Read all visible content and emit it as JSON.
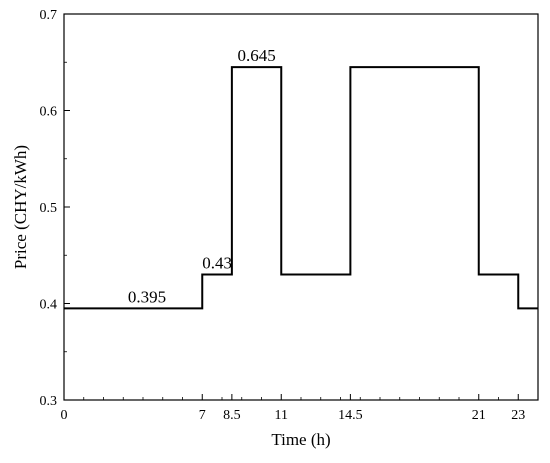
{
  "chart_data": {
    "type": "line",
    "step": true,
    "title": "",
    "xlabel": "Time (h)",
    "ylabel": "Price (CHY/kWh)",
    "xlim": [
      0,
      24
    ],
    "ylim": [
      0.3,
      0.7
    ],
    "x_ticks": [
      0,
      7,
      8.5,
      11,
      14.5,
      21,
      23
    ],
    "x_tick_labels": [
      "0",
      "7",
      "8.5",
      "11",
      "14.5",
      "21",
      "23"
    ],
    "y_ticks": [
      0.3,
      0.4,
      0.5,
      0.6,
      0.7
    ],
    "y_tick_labels": [
      "0.3",
      "0.4",
      "0.5",
      "0.6",
      "0.7"
    ],
    "grid": false,
    "legend": "none",
    "series": [
      {
        "segments": [
          {
            "x_start": 0,
            "x_end": 7,
            "value": 0.395
          },
          {
            "x_start": 7,
            "x_end": 8.5,
            "value": 0.43
          },
          {
            "x_start": 8.5,
            "x_end": 11,
            "value": 0.645
          },
          {
            "x_start": 11,
            "x_end": 14.5,
            "value": 0.43
          },
          {
            "x_start": 14.5,
            "x_end": 21,
            "value": 0.645
          },
          {
            "x_start": 21,
            "x_end": 23,
            "value": 0.43
          },
          {
            "x_start": 23,
            "x_end": 24,
            "value": 0.395
          }
        ]
      }
    ],
    "annotations": [
      {
        "text": "0.395",
        "x": 4.2,
        "y": 0.395
      },
      {
        "text": "0.43",
        "x": 7.75,
        "y": 0.43
      },
      {
        "text": "0.645",
        "x": 9.75,
        "y": 0.645
      }
    ],
    "colors": {
      "line": "#000000",
      "axis": "#000000"
    }
  }
}
